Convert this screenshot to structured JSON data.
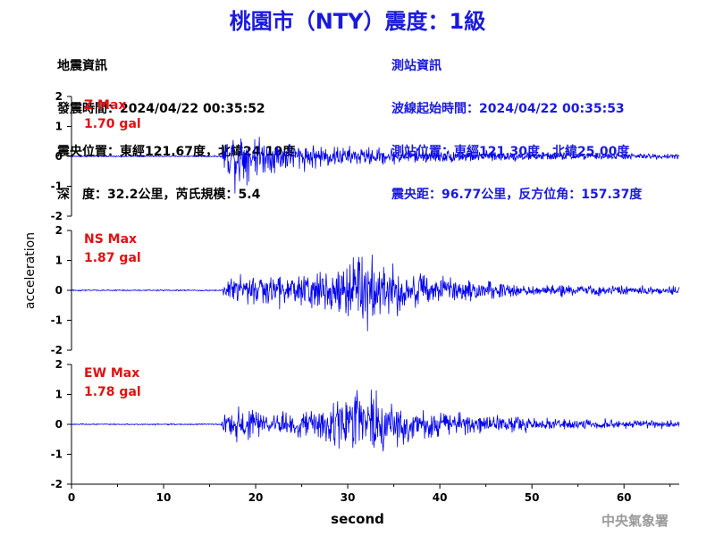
{
  "header": {
    "title": "桃園市（NTY）震度：1級"
  },
  "quake_info": {
    "heading": "地震資訊",
    "origin_time": "發震時間：2024/04/22 00:35:52",
    "epicenter": "震央位置：東經121.67度，北緯24.19度",
    "depth_magnitude": "深　度：32.2公里，芮氏規模：5.4"
  },
  "station_info": {
    "heading": "測站資訊",
    "arrival_time": "波線起始時間：2024/04/22 00:35:53",
    "station_location": "測站位置：東經121.30度，北緯25.00度",
    "distance_azimuth": "震央距：96.77公里，反方位角：157.37度"
  },
  "footer": {
    "agency": "中央氣象署"
  },
  "colors": {
    "title": "#1a1adc",
    "trace": "#0000ee",
    "max_label": "#e01010",
    "footer": "#9a9a9a"
  },
  "chart_data": {
    "type": "line",
    "xlabel": "second",
    "ylabel": "acceleration",
    "xlim": [
      0,
      66
    ],
    "x_ticks": [
      "0",
      "10",
      "20",
      "30",
      "40",
      "50",
      "60"
    ],
    "y_ticks": [
      "2",
      "1",
      "0",
      "-1",
      "-2"
    ],
    "ylim": [
      -2,
      2
    ],
    "sample_rate_hz": 20,
    "panels": [
      {
        "name": "Z",
        "max_label": "Z Max",
        "max_value": "1.70 gal",
        "envelope": [
          {
            "t": 0,
            "a": 0.03
          },
          {
            "t": 16.2,
            "a": 0.03
          },
          {
            "t": 16.6,
            "a": 0.7
          },
          {
            "t": 18,
            "a": 1.55
          },
          {
            "t": 19,
            "a": 1.1
          },
          {
            "t": 21,
            "a": 0.8
          },
          {
            "t": 25,
            "a": 0.6
          },
          {
            "t": 30,
            "a": 0.45
          },
          {
            "t": 40,
            "a": 0.3
          },
          {
            "t": 50,
            "a": 0.2
          },
          {
            "t": 60,
            "a": 0.15
          },
          {
            "t": 66,
            "a": 0.12
          }
        ]
      },
      {
        "name": "NS",
        "max_label": "NS Max",
        "max_value": "1.87 gal",
        "envelope": [
          {
            "t": 0,
            "a": 0.03
          },
          {
            "t": 16.2,
            "a": 0.03
          },
          {
            "t": 16.6,
            "a": 0.35
          },
          {
            "t": 18,
            "a": 0.9
          },
          {
            "t": 20,
            "a": 0.7
          },
          {
            "t": 25,
            "a": 0.75
          },
          {
            "t": 28,
            "a": 1.0
          },
          {
            "t": 30,
            "a": 1.75
          },
          {
            "t": 32,
            "a": 1.6
          },
          {
            "t": 35,
            "a": 1.1
          },
          {
            "t": 40,
            "a": 0.6
          },
          {
            "t": 50,
            "a": 0.3
          },
          {
            "t": 60,
            "a": 0.2
          },
          {
            "t": 66,
            "a": 0.18
          }
        ]
      },
      {
        "name": "EW",
        "max_label": "EW Max",
        "max_value": "1.78 gal",
        "envelope": [
          {
            "t": 0,
            "a": 0.03
          },
          {
            "t": 16.2,
            "a": 0.03
          },
          {
            "t": 16.6,
            "a": 0.4
          },
          {
            "t": 18,
            "a": 0.9
          },
          {
            "t": 20,
            "a": 0.6
          },
          {
            "t": 25,
            "a": 0.55
          },
          {
            "t": 28,
            "a": 0.9
          },
          {
            "t": 30,
            "a": 1.6
          },
          {
            "t": 32,
            "a": 1.75
          },
          {
            "t": 35,
            "a": 1.0
          },
          {
            "t": 40,
            "a": 0.55
          },
          {
            "t": 50,
            "a": 0.3
          },
          {
            "t": 60,
            "a": 0.2
          },
          {
            "t": 66,
            "a": 0.16
          }
        ]
      }
    ]
  }
}
